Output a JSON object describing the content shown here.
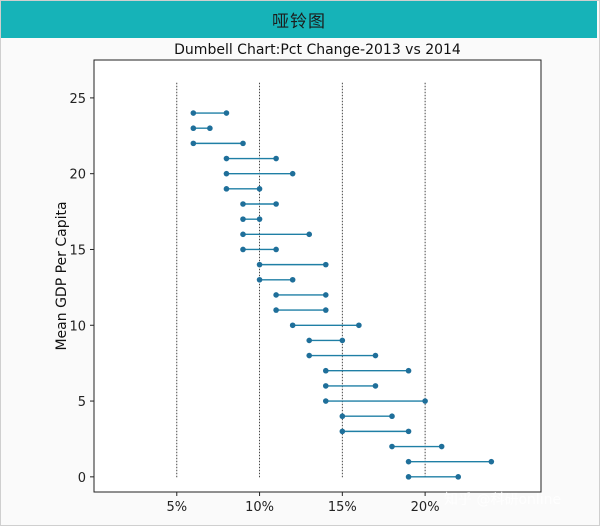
{
  "header": {
    "title": "哑铃图"
  },
  "watermark": "知乎 @科研online",
  "chart_data": {
    "type": "dumbbell",
    "title": "Dumbell Chart:Pct Change-2013 vs 2014",
    "xlabel": "",
    "ylabel": "Mean GDP Per Capita",
    "xlim": [
      0.0,
      0.27
    ],
    "ylim": [
      -1,
      27.5
    ],
    "xticks": [
      0.05,
      0.1,
      0.15,
      0.2
    ],
    "xtick_labels": [
      "5%",
      "10%",
      "15%",
      "20%"
    ],
    "yticks": [
      0,
      5,
      10,
      15,
      20,
      25
    ],
    "yticks_labels": [
      "0",
      "5",
      "10",
      "15",
      "20",
      "25"
    ],
    "reference_lines_x": [
      0.05,
      0.1,
      0.15,
      0.2
    ],
    "grid": false,
    "rows": [
      {
        "y": 0,
        "pct_2013": 0.19,
        "pct_2014": 0.22
      },
      {
        "y": 1,
        "pct_2013": 0.19,
        "pct_2014": 0.24
      },
      {
        "y": 2,
        "pct_2013": 0.18,
        "pct_2014": 0.21
      },
      {
        "y": 3,
        "pct_2013": 0.15,
        "pct_2014": 0.19
      },
      {
        "y": 4,
        "pct_2013": 0.15,
        "pct_2014": 0.18
      },
      {
        "y": 5,
        "pct_2013": 0.14,
        "pct_2014": 0.2
      },
      {
        "y": 6,
        "pct_2013": 0.14,
        "pct_2014": 0.17
      },
      {
        "y": 7,
        "pct_2013": 0.14,
        "pct_2014": 0.19
      },
      {
        "y": 8,
        "pct_2013": 0.13,
        "pct_2014": 0.17
      },
      {
        "y": 9,
        "pct_2013": 0.13,
        "pct_2014": 0.15
      },
      {
        "y": 10,
        "pct_2013": 0.12,
        "pct_2014": 0.16
      },
      {
        "y": 11,
        "pct_2013": 0.11,
        "pct_2014": 0.14
      },
      {
        "y": 12,
        "pct_2013": 0.11,
        "pct_2014": 0.14
      },
      {
        "y": 13,
        "pct_2013": 0.1,
        "pct_2014": 0.12
      },
      {
        "y": 14,
        "pct_2013": 0.1,
        "pct_2014": 0.14
      },
      {
        "y": 15,
        "pct_2013": 0.09,
        "pct_2014": 0.11
      },
      {
        "y": 16,
        "pct_2013": 0.09,
        "pct_2014": 0.13
      },
      {
        "y": 17,
        "pct_2013": 0.09,
        "pct_2014": 0.1
      },
      {
        "y": 18,
        "pct_2013": 0.09,
        "pct_2014": 0.11
      },
      {
        "y": 19,
        "pct_2013": 0.08,
        "pct_2014": 0.1
      },
      {
        "y": 20,
        "pct_2013": 0.08,
        "pct_2014": 0.12
      },
      {
        "y": 21,
        "pct_2013": 0.08,
        "pct_2014": 0.11
      },
      {
        "y": 22,
        "pct_2013": 0.06,
        "pct_2014": 0.09
      },
      {
        "y": 23,
        "pct_2013": 0.06,
        "pct_2014": 0.07
      },
      {
        "y": 24,
        "pct_2013": 0.06,
        "pct_2014": 0.08
      }
    ],
    "colors": {
      "line": "#1f7fa5",
      "dot": "#1f6f9a",
      "banner": "#16b3b8"
    }
  }
}
